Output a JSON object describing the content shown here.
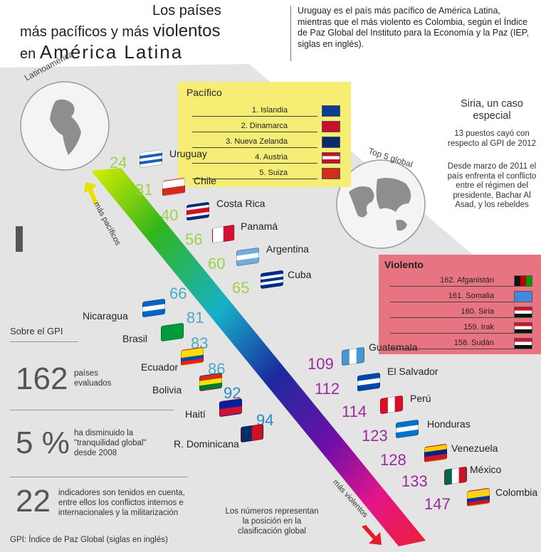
{
  "header": {
    "title_line1": "Los países",
    "title_line2a": "más pacíficos y más",
    "title_line2b": "violentos",
    "title_line3a": "en",
    "title_line3b": "América Latina",
    "intro": "Uruguay es el país más pacífico de América Latina, mientras que el más violento es Colombia, según el Índice de Paz Global del Instituto para la Economía y la Paz (IEP, siglas en inglés)."
  },
  "colors": {
    "background_gray": "#e4e4e4",
    "panel_yellow": "#f6ee74",
    "panel_red": "#e77480",
    "peace_number": "#9ed24b",
    "violent_number": "#9b2a9b"
  },
  "globe_labels": {
    "latam": "Latinoamérica",
    "top5": "Top 5 global"
  },
  "peaceful_panel": {
    "title": "Pacífico",
    "items": [
      {
        "label": "1. Islandia",
        "flag": "iceland-flag"
      },
      {
        "label": "2. Dinamarca",
        "flag": "denmark-flag"
      },
      {
        "label": "3. Nueva Zelanda",
        "flag": "new-zealand-flag"
      },
      {
        "label": "4. Austria",
        "flag": "austria-flag"
      },
      {
        "label": "5. Suiza",
        "flag": "switzerland-flag"
      }
    ]
  },
  "violent_panel": {
    "title": "Violento",
    "items": [
      {
        "label": "162. Afganistán",
        "flag": "afghanistan-flag"
      },
      {
        "label": "161. Somalia",
        "flag": "somalia-flag"
      },
      {
        "label": "160. Siria",
        "flag": "syria-flag"
      },
      {
        "label": "159. Irak",
        "flag": "iraq-flag"
      },
      {
        "label": "158. Sudán",
        "flag": "sudan-flag"
      }
    ]
  },
  "syria": {
    "title_line1": "Siria, un caso",
    "title_line2": "especial",
    "text1": "13 puestos cayó con respecto al GPI de 2012",
    "text2": "Desde marzo de 2011 el país enfrenta el conflicto entre el régimen del presidente, Bachar Al Asad, y los rebeldes"
  },
  "axis": {
    "peaceful": "más pacíficos",
    "violent": "más violentos"
  },
  "countries": [
    {
      "rank": "24",
      "name": "Uruguay"
    },
    {
      "rank": "31",
      "name": "Chile"
    },
    {
      "rank": "40",
      "name": "Costa Rica"
    },
    {
      "rank": "56",
      "name": "Panamá"
    },
    {
      "rank": "60",
      "name": "Argentina"
    },
    {
      "rank": "65",
      "name": "Cuba"
    },
    {
      "rank": "66",
      "name": "Nicaragua"
    },
    {
      "rank": "81",
      "name": "Brasil"
    },
    {
      "rank": "83",
      "name": "Ecuador"
    },
    {
      "rank": "86",
      "name": "Bolivia"
    },
    {
      "rank": "92",
      "name": "Haití"
    },
    {
      "rank": "94",
      "name": "R. Dominicana"
    },
    {
      "rank": "109",
      "name": "Guatemala"
    },
    {
      "rank": "112",
      "name": "El Salvador"
    },
    {
      "rank": "114",
      "name": "Perú"
    },
    {
      "rank": "123",
      "name": "Honduras"
    },
    {
      "rank": "128",
      "name": "Venezuela"
    },
    {
      "rank": "133",
      "name": "México"
    },
    {
      "rank": "147",
      "name": "Colombia"
    }
  ],
  "gpi": {
    "title": "Sobre el GPI",
    "stat1_value": "162",
    "stat1_text": "países evaluados",
    "stat2_value": "5 %",
    "stat2_text": "ha disminuido la \"tranquilidad global\" desde 2008",
    "stat3_value": "22",
    "stat3_text": "indicadores son tenidos en cuenta, entre ellos los conflictos internos e internacionales y la militarización",
    "footnote": "GPI: Índice de Paz Global (siglas en inglés)"
  },
  "note": "Los números representan la posición en la clasificación global"
}
